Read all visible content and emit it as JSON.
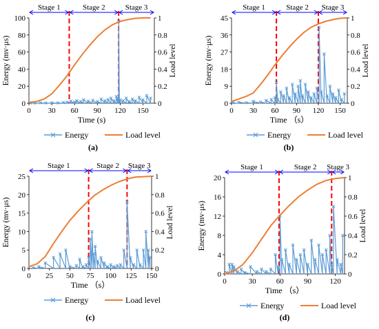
{
  "figure": {
    "panels": [
      {
        "label": "(a)",
        "x_label": "Time (s)"
      },
      {
        "label": "(b)",
        "x_label": "Time （s）"
      },
      {
        "label": "(c)",
        "x_label": "Time （s）"
      },
      {
        "label": "(d)",
        "x_label": "Time （s）"
      }
    ]
  },
  "chart_data": [
    {
      "type": "line",
      "panel": "(a)",
      "xlabel": "Time (s)",
      "ylabel": "Energy (mv·μs)",
      "y2label": "Load level",
      "xlim": [
        0,
        165
      ],
      "xticks": [
        0,
        30,
        60,
        90,
        120,
        150
      ],
      "ylim": [
        0,
        100
      ],
      "yticks": [
        0,
        20,
        40,
        60,
        80,
        100
      ],
      "y2lim": [
        0,
        1
      ],
      "y2ticks": [
        0,
        0.2,
        0.4,
        0.6,
        0.8,
        1
      ],
      "stage_bounds": [
        0,
        53,
        118,
        165
      ],
      "stages": [
        "Stage 1",
        "Stage 2",
        "Stage 3"
      ],
      "series": [
        {
          "name": "Energy",
          "axis": "left",
          "color": "#5b9bd5",
          "x": [
            2,
            8,
            15,
            22,
            30,
            38,
            45,
            50,
            55,
            60,
            63,
            68,
            72,
            78,
            84,
            90,
            95,
            100,
            104,
            108,
            112,
            115,
            117,
            118,
            119,
            120,
            124,
            128,
            132,
            136,
            140,
            145,
            150,
            155,
            160
          ],
          "y": [
            0.3,
            0.2,
            0.5,
            0.3,
            0.6,
            0.4,
            0.8,
            1.2,
            2.5,
            1.5,
            3,
            2,
            4,
            2.5,
            3.5,
            2,
            5,
            3,
            4.5,
            6,
            3,
            8,
            5,
            96,
            2,
            4,
            3,
            6,
            2,
            5,
            3,
            7,
            4,
            9,
            6
          ]
        },
        {
          "name": "Load level",
          "axis": "right",
          "color": "#ed7d31",
          "x": [
            0,
            10,
            20,
            30,
            40,
            50,
            60,
            70,
            80,
            90,
            100,
            110,
            120,
            130,
            140,
            150,
            160
          ],
          "y": [
            0.01,
            0.02,
            0.05,
            0.11,
            0.21,
            0.32,
            0.45,
            0.57,
            0.68,
            0.78,
            0.86,
            0.92,
            0.96,
            0.98,
            0.995,
            1.0,
            1.0
          ]
        }
      ]
    },
    {
      "type": "line",
      "panel": "(b)",
      "xlabel": "Time （s）",
      "ylabel": "Energy (mv·μs)",
      "y2label": "Load level",
      "xlim": [
        0,
        160
      ],
      "xticks": [
        0,
        30,
        60,
        90,
        120,
        150
      ],
      "ylim": [
        0,
        45
      ],
      "yticks": [
        0,
        9,
        18,
        27,
        36,
        45
      ],
      "y2lim": [
        0,
        1
      ],
      "y2ticks": [
        0,
        0.2,
        0.4,
        0.6,
        0.8,
        1
      ],
      "stage_bounds": [
        0,
        62,
        120,
        160
      ],
      "stages": [
        "Stage 1",
        "Stage 2",
        "Stage 3"
      ],
      "series": [
        {
          "name": "Energy",
          "axis": "left",
          "color": "#5b9bd5",
          "x": [
            2,
            10,
            20,
            30,
            40,
            48,
            55,
            60,
            62,
            64,
            68,
            72,
            76,
            80,
            84,
            88,
            92,
            95,
            98,
            102,
            106,
            110,
            114,
            118,
            121,
            124,
            128,
            132,
            136,
            140,
            144,
            148,
            152,
            156
          ],
          "y": [
            0.2,
            0.5,
            0.3,
            1,
            0.6,
            1.5,
            2,
            3,
            11,
            2,
            6,
            4,
            8,
            3,
            10,
            5,
            9,
            12,
            4,
            10,
            6,
            3,
            5,
            8,
            40,
            6,
            26,
            4,
            9,
            5,
            3,
            7,
            2,
            5
          ]
        },
        {
          "name": "Load level",
          "axis": "right",
          "color": "#ed7d31",
          "x": [
            0,
            10,
            20,
            30,
            40,
            50,
            60,
            70,
            80,
            90,
            100,
            110,
            120,
            130,
            140,
            150,
            160
          ],
          "y": [
            0.02,
            0.05,
            0.08,
            0.12,
            0.22,
            0.33,
            0.45,
            0.56,
            0.66,
            0.75,
            0.83,
            0.89,
            0.93,
            0.96,
            0.98,
            0.995,
            1.0
          ]
        }
      ]
    },
    {
      "type": "line",
      "panel": "(c)",
      "xlabel": "Time （s）",
      "ylabel": "Energy (mv·μs)",
      "y2label": "Load level",
      "xlim": [
        0,
        150
      ],
      "xticks": [
        0,
        25,
        50,
        75,
        100,
        125,
        150
      ],
      "ylim": [
        0,
        25
      ],
      "yticks": [
        0,
        5,
        10,
        15,
        20,
        25
      ],
      "y2lim": [
        0,
        1
      ],
      "y2ticks": [
        0,
        0.2,
        0.4,
        0.6,
        0.8,
        1
      ],
      "stage_bounds": [
        0,
        73,
        120,
        150
      ],
      "stages": [
        "Stage 1",
        "Stage 2",
        "Stage 3"
      ],
      "series": [
        {
          "name": "Energy",
          "axis": "left",
          "color": "#5b9bd5",
          "x": [
            5,
            12,
            20,
            30,
            38,
            45,
            50,
            58,
            62,
            66,
            70,
            73,
            75,
            77,
            79,
            81,
            84,
            88,
            92,
            96,
            100,
            104,
            108,
            112,
            116,
            120,
            124,
            128,
            132,
            136,
            140,
            143,
            146,
            148
          ],
          "y": [
            0.2,
            0.5,
            1.5,
            3,
            4,
            5,
            0.5,
            0.8,
            2.5,
            0.5,
            1,
            3,
            8,
            10,
            4,
            6,
            2,
            3,
            1.5,
            0.5,
            1,
            0.5,
            0.8,
            1,
            5,
            18,
            3,
            1,
            5,
            1,
            5,
            10,
            5,
            3
          ]
        },
        {
          "name": "Load level",
          "axis": "right",
          "color": "#ed7d31",
          "x": [
            0,
            10,
            20,
            30,
            40,
            50,
            60,
            70,
            80,
            90,
            100,
            110,
            120,
            130,
            140,
            150
          ],
          "y": [
            0.02,
            0.05,
            0.13,
            0.27,
            0.4,
            0.52,
            0.62,
            0.71,
            0.79,
            0.85,
            0.9,
            0.94,
            0.97,
            0.99,
            0.995,
            1.0
          ]
        }
      ]
    },
    {
      "type": "line",
      "panel": "(d)",
      "xlabel": "Time （s）",
      "ylabel": "Energy (mv·μs)",
      "y2label": "Load level",
      "xlim": [
        0,
        130
      ],
      "xticks": [
        0,
        30,
        60,
        90,
        120
      ],
      "ylim": [
        0,
        20
      ],
      "yticks": [
        0,
        4,
        8,
        12,
        16,
        20
      ],
      "y2lim": [
        0,
        1
      ],
      "y2ticks": [
        0,
        0.2,
        0.4,
        0.6,
        0.8,
        1
      ],
      "stage_bounds": [
        0,
        59,
        116,
        130
      ],
      "stages": [
        "Stage 1",
        "Stage 2",
        "Stage 3"
      ],
      "series": [
        {
          "name": "Energy",
          "axis": "left",
          "color": "#5b9bd5",
          "x": [
            2,
            5,
            8,
            10,
            14,
            18,
            22,
            28,
            35,
            40,
            45,
            50,
            55,
            58,
            60,
            62,
            66,
            70,
            74,
            78,
            82,
            86,
            90,
            94,
            98,
            102,
            106,
            110,
            114,
            116,
            118,
            122,
            126,
            128
          ],
          "y": [
            0.3,
            2,
            2,
            1.5,
            0.5,
            1,
            0.3,
            1.5,
            0.5,
            1,
            0.5,
            1,
            4,
            1.5,
            12,
            3,
            5,
            2,
            6,
            3,
            4,
            5,
            2,
            7,
            3,
            6,
            4,
            5,
            8,
            2,
            14,
            3,
            2,
            8
          ]
        },
        {
          "name": "Load level",
          "axis": "right",
          "color": "#ed7d31",
          "x": [
            0,
            10,
            20,
            30,
            40,
            50,
            60,
            70,
            80,
            90,
            100,
            110,
            120,
            130
          ],
          "y": [
            0.0,
            0.03,
            0.1,
            0.22,
            0.36,
            0.5,
            0.61,
            0.71,
            0.8,
            0.87,
            0.93,
            0.97,
            0.99,
            1.0
          ]
        }
      ]
    }
  ]
}
